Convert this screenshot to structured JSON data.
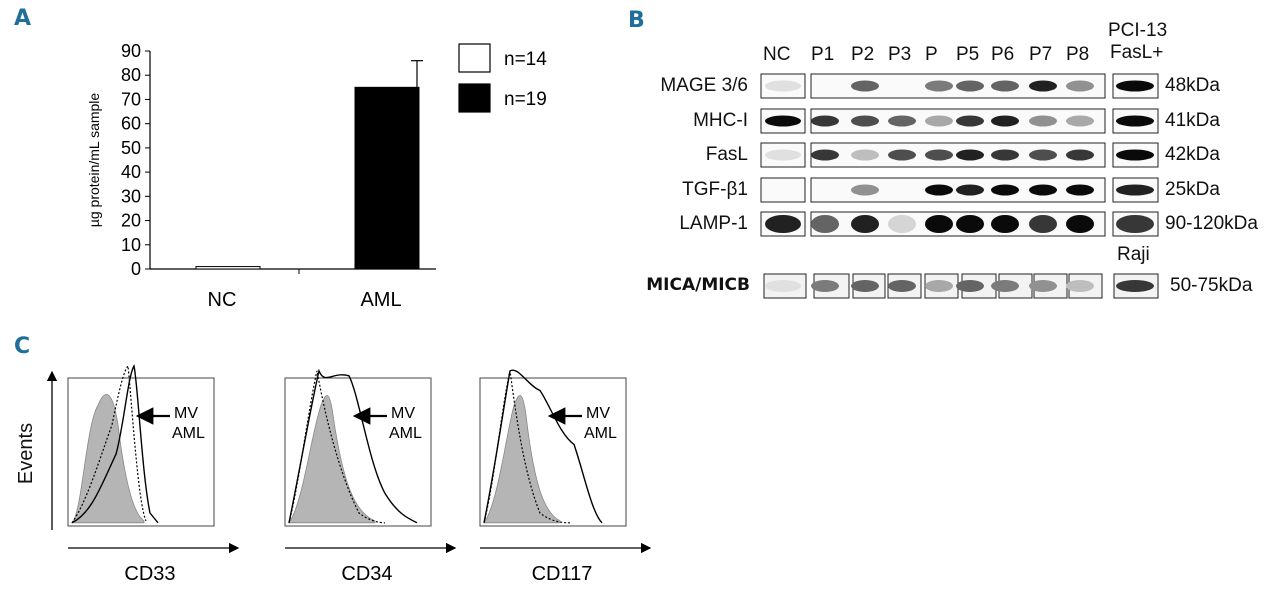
{
  "panel_a": {
    "letter": "A",
    "chart_data": {
      "type": "bar",
      "categories": [
        "NC",
        "AML"
      ],
      "values": [
        1,
        75
      ],
      "errors": [
        0,
        11
      ],
      "ylabel": "µg protein/mL sample",
      "ylim": [
        0,
        90
      ],
      "yticks": [
        0,
        10,
        20,
        30,
        40,
        50,
        60,
        70,
        80,
        90
      ],
      "legend": [
        {
          "label": "n=14",
          "color": "#ffffff"
        },
        {
          "label": "n=19",
          "color": "#000000"
        }
      ],
      "legend_position": "top-right",
      "grid": false
    }
  },
  "panel_b": {
    "letter": "B",
    "lanes": [
      "NC",
      "P1",
      "P2",
      "P3",
      "P",
      "P5",
      "P6",
      "P7",
      "P8"
    ],
    "control_lane": [
      "PCI-13",
      "FasL+"
    ],
    "raji_label": "Raji",
    "rows": [
      {
        "label": "MAGE 3/6",
        "mw": "48kDa"
      },
      {
        "label": "MHC-I",
        "mw": "41kDa"
      },
      {
        "label": "FasL",
        "mw": "42kDa"
      },
      {
        "label": "TGF-β1",
        "mw": "25kDa"
      },
      {
        "label": "LAMP-1",
        "mw": "90-120kDa"
      },
      {
        "label": "MICA/MICB",
        "mw": "50-75kDa"
      }
    ]
  },
  "panel_c": {
    "letter": "C",
    "y_axis_label": "Events",
    "histograms": [
      {
        "marker": "CD33",
        "annotation_line1": "MV",
        "annotation_line2": "AML"
      },
      {
        "marker": "CD34",
        "annotation_line1": "MV",
        "annotation_line2": "AML"
      },
      {
        "marker": "CD117",
        "annotation_line1": "MV",
        "annotation_line2": "AML"
      }
    ]
  }
}
